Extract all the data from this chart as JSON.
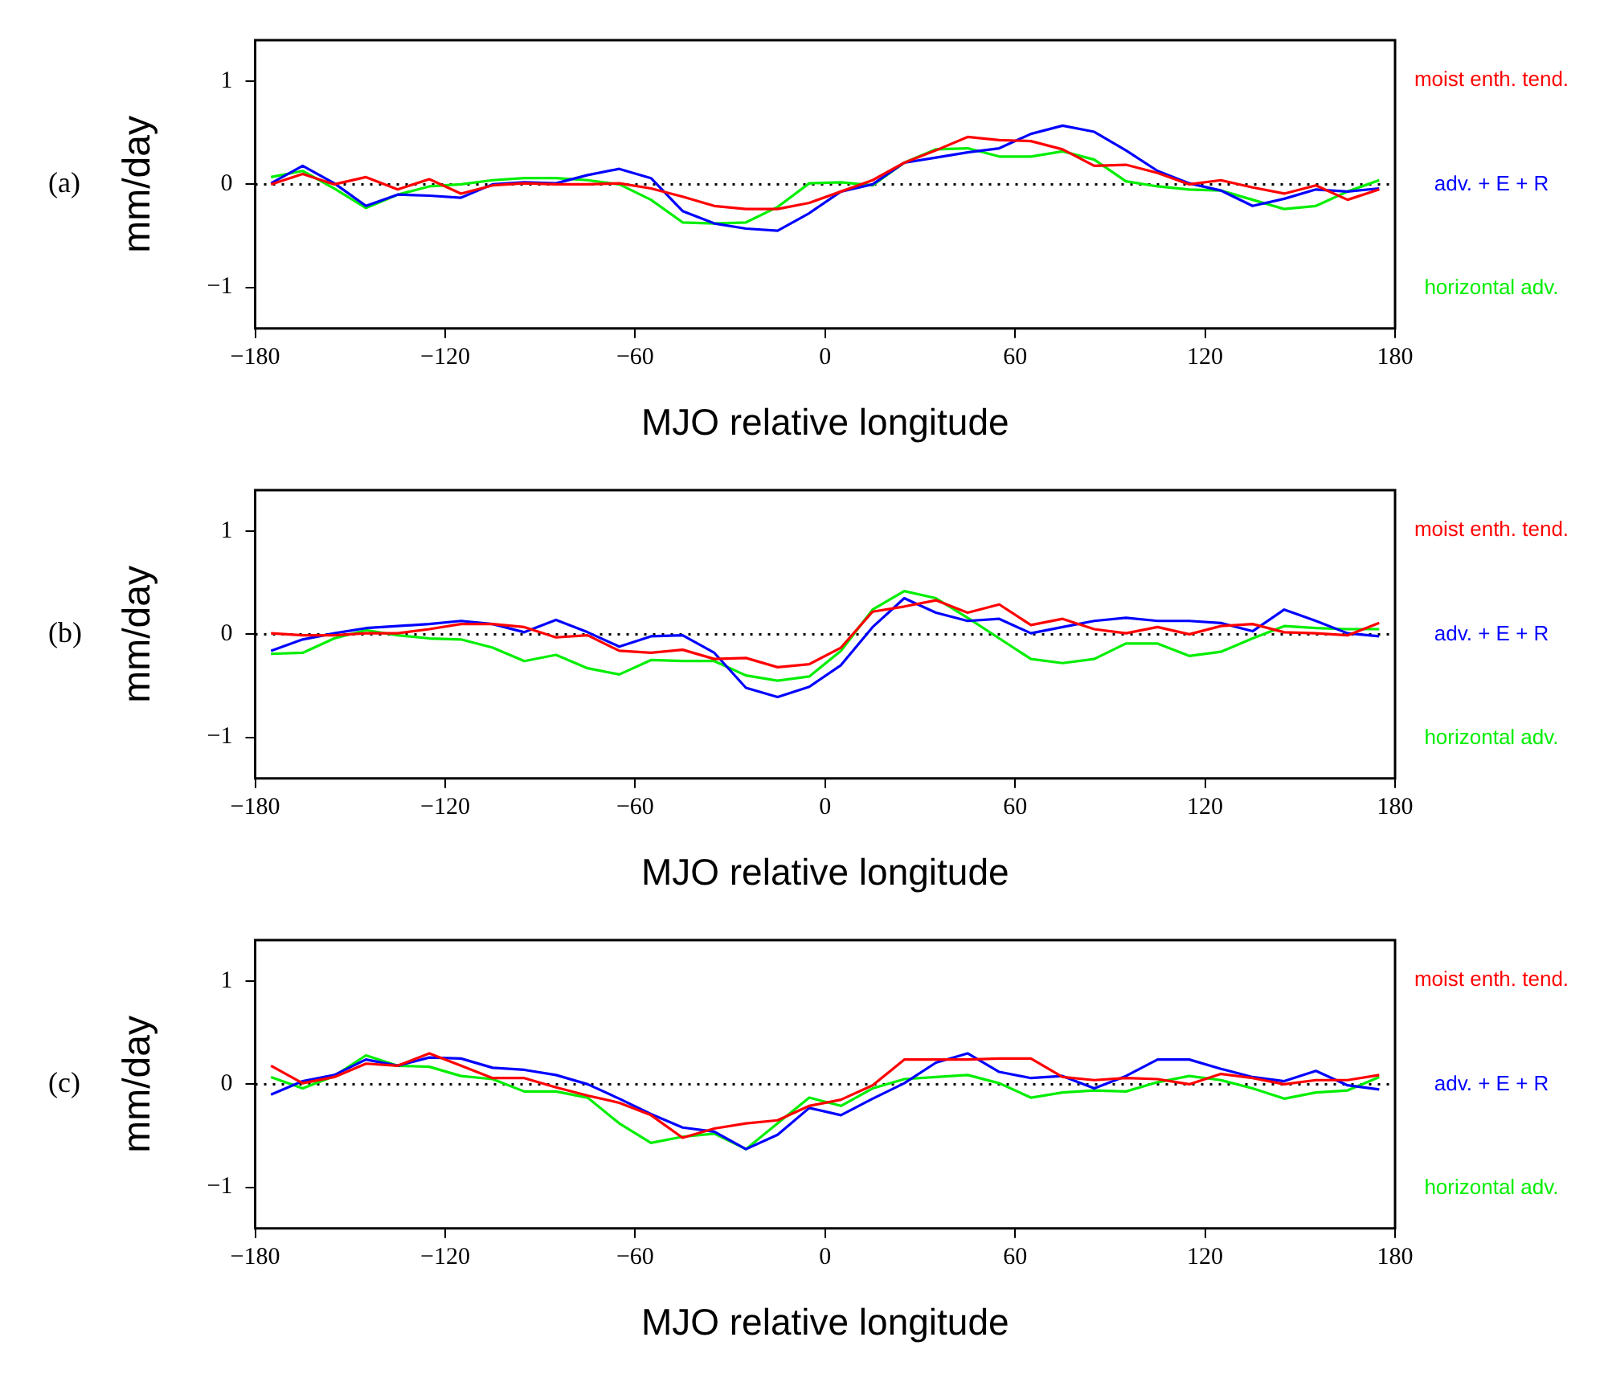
{
  "chart_data": [
    {
      "type": "line",
      "xlabel": "MJO relative longitude",
      "ylabel": "mm/day",
      "annotations": [
        "(a)"
      ],
      "x": [
        -175,
        -165,
        -155,
        -145,
        -135,
        -125,
        -115,
        -105,
        -95,
        -85,
        -75,
        -65,
        -55,
        -45,
        -35,
        -25,
        -15,
        -5,
        5,
        15,
        25,
        35,
        45,
        55,
        65,
        75,
        85,
        95,
        105,
        115,
        125,
        135,
        145,
        155,
        165,
        175
      ],
      "xlim": [
        -180,
        180
      ],
      "xticks": [
        -180,
        -120,
        -60,
        0,
        60,
        120,
        180
      ],
      "ylim": [
        -1.4,
        1.4
      ],
      "yticks": [
        -1,
        0,
        1
      ],
      "grid": false,
      "legend": "right",
      "ref_lines": [
        {
          "axis": "y",
          "value": 0,
          "line_style": "dotted",
          "color": "#000000"
        }
      ],
      "series": [
        {
          "name": "moist enth. tend.",
          "color": "#ff0000",
          "values": [
            0,
            0.1,
            0,
            0.07,
            -0.05,
            0.05,
            -0.09,
            -0.01,
            0.01,
            0,
            0,
            0.01,
            -0.04,
            -0.12,
            -0.21,
            -0.24,
            -0.24,
            -0.18,
            -0.07,
            0.04,
            0.21,
            0.33,
            0.46,
            0.43,
            0.42,
            0.34,
            0.18,
            0.19,
            0.11,
            0,
            0.04,
            -0.03,
            -0.09,
            -0.01,
            -0.15,
            -0.05
          ]
        },
        {
          "name": "adv. + E + R",
          "color": "#0000ff",
          "values": [
            0.01,
            0.18,
            0.01,
            -0.21,
            -0.1,
            -0.11,
            -0.13,
            0,
            0.02,
            0.01,
            0.09,
            0.15,
            0.06,
            -0.26,
            -0.38,
            -0.43,
            -0.45,
            -0.28,
            -0.07,
            0,
            0.21,
            0.26,
            0.31,
            0.35,
            0.49,
            0.57,
            0.51,
            0.33,
            0.13,
            0.01,
            -0.06,
            -0.21,
            -0.14,
            -0.05,
            -0.07,
            -0.04
          ]
        },
        {
          "name": "horizontal adv.",
          "color": "#00ee00",
          "values": [
            0.07,
            0.13,
            -0.04,
            -0.23,
            -0.1,
            -0.02,
            0,
            0.04,
            0.06,
            0.06,
            0.04,
            0,
            -0.15,
            -0.37,
            -0.38,
            -0.37,
            -0.22,
            0.01,
            0.02,
            -0.01,
            0.21,
            0.34,
            0.35,
            0.27,
            0.27,
            0.32,
            0.24,
            0.03,
            -0.02,
            -0.05,
            -0.06,
            -0.15,
            -0.24,
            -0.21,
            -0.07,
            0.04
          ]
        }
      ]
    },
    {
      "type": "line",
      "xlabel": "MJO relative longitude",
      "ylabel": "mm/day",
      "annotations": [
        "(b)"
      ],
      "x": [
        -175,
        -165,
        -155,
        -145,
        -135,
        -125,
        -115,
        -105,
        -95,
        -85,
        -75,
        -65,
        -55,
        -45,
        -35,
        -25,
        -15,
        -5,
        5,
        15,
        25,
        35,
        45,
        55,
        65,
        75,
        85,
        95,
        105,
        115,
        125,
        135,
        145,
        155,
        165,
        175
      ],
      "xlim": [
        -180,
        180
      ],
      "xticks": [
        -180,
        -120,
        -60,
        0,
        60,
        120,
        180
      ],
      "ylim": [
        -1.4,
        1.4
      ],
      "yticks": [
        -1,
        0,
        1
      ],
      "grid": false,
      "legend": "right",
      "ref_lines": [
        {
          "axis": "y",
          "value": 0,
          "line_style": "dotted",
          "color": "#000000"
        }
      ],
      "series": [
        {
          "name": "moist enth. tend.",
          "color": "#ff0000",
          "values": [
            0.01,
            -0.01,
            -0.01,
            0.01,
            0.01,
            0.05,
            0.1,
            0.1,
            0.07,
            -0.03,
            -0.01,
            -0.16,
            -0.18,
            -0.15,
            -0.24,
            -0.23,
            -0.32,
            -0.29,
            -0.13,
            0.22,
            0.27,
            0.33,
            0.21,
            0.29,
            0.09,
            0.15,
            0.05,
            0.01,
            0.07,
            0,
            0.08,
            0.1,
            0.02,
            0.01,
            -0.01,
            0.11
          ]
        },
        {
          "name": "adv. + E + R",
          "color": "#0000ff",
          "values": [
            -0.16,
            -0.05,
            0.01,
            0.06,
            0.08,
            0.1,
            0.13,
            0.1,
            0.02,
            0.14,
            0.02,
            -0.12,
            -0.02,
            -0.01,
            -0.18,
            -0.52,
            -0.61,
            -0.51,
            -0.3,
            0.07,
            0.35,
            0.21,
            0.13,
            0.15,
            0.01,
            0.07,
            0.13,
            0.16,
            0.13,
            0.13,
            0.11,
            0.03,
            0.24,
            0.13,
            0.01,
            -0.02
          ]
        },
        {
          "name": "horizontal adv.",
          "color": "#00ee00",
          "values": [
            -0.19,
            -0.18,
            -0.04,
            0.04,
            -0.01,
            -0.04,
            -0.05,
            -0.13,
            -0.26,
            -0.2,
            -0.33,
            -0.39,
            -0.25,
            -0.26,
            -0.26,
            -0.4,
            -0.45,
            -0.41,
            -0.16,
            0.24,
            0.42,
            0.35,
            0.16,
            -0.04,
            -0.24,
            -0.28,
            -0.24,
            -0.09,
            -0.09,
            -0.21,
            -0.17,
            -0.04,
            0.08,
            0.06,
            0.05,
            0.05
          ]
        }
      ]
    },
    {
      "type": "line",
      "xlabel": "MJO relative longitude",
      "ylabel": "mm/day",
      "annotations": [
        "(c)"
      ],
      "x": [
        -175,
        -165,
        -155,
        -145,
        -135,
        -125,
        -115,
        -105,
        -95,
        -85,
        -75,
        -65,
        -55,
        -45,
        -35,
        -25,
        -15,
        -5,
        5,
        15,
        25,
        35,
        45,
        55,
        65,
        75,
        85,
        95,
        105,
        115,
        125,
        135,
        145,
        155,
        165,
        175
      ],
      "xlim": [
        -180,
        180
      ],
      "xticks": [
        -180,
        -120,
        -60,
        0,
        60,
        120,
        180
      ],
      "ylim": [
        -1.4,
        1.4
      ],
      "yticks": [
        -1,
        0,
        1
      ],
      "grid": false,
      "legend": "right",
      "ref_lines": [
        {
          "axis": "y",
          "value": 0,
          "line_style": "dotted",
          "color": "#000000"
        }
      ],
      "series": [
        {
          "name": "moist enth. tend.",
          "color": "#ff0000",
          "values": [
            0.18,
            0.01,
            0.07,
            0.2,
            0.18,
            0.3,
            0.18,
            0.06,
            0.06,
            -0.03,
            -0.11,
            -0.18,
            -0.3,
            -0.52,
            -0.43,
            -0.38,
            -0.35,
            -0.21,
            -0.15,
            -0.01,
            0.24,
            0.24,
            0.24,
            0.25,
            0.25,
            0.07,
            0.04,
            0.06,
            0.05,
            0,
            0.1,
            0.06,
            0,
            0.04,
            0.04,
            0.09
          ]
        },
        {
          "name": "adv. + E + R",
          "color": "#0000ff",
          "values": [
            -0.1,
            0.03,
            0.09,
            0.24,
            0.18,
            0.26,
            0.25,
            0.16,
            0.14,
            0.09,
            0,
            -0.14,
            -0.29,
            -0.42,
            -0.46,
            -0.63,
            -0.49,
            -0.23,
            -0.3,
            -0.14,
            0.01,
            0.21,
            0.3,
            0.12,
            0.06,
            0.08,
            -0.04,
            0.08,
            0.24,
            0.24,
            0.15,
            0.07,
            0.03,
            0.13,
            -0.01,
            -0.05
          ]
        },
        {
          "name": "horizontal adv.",
          "color": "#00ee00",
          "values": [
            0.07,
            -0.04,
            0.08,
            0.28,
            0.18,
            0.17,
            0.08,
            0.05,
            -0.07,
            -0.07,
            -0.13,
            -0.38,
            -0.57,
            -0.51,
            -0.48,
            -0.63,
            -0.38,
            -0.13,
            -0.21,
            -0.04,
            0.05,
            0.07,
            0.09,
            0.01,
            -0.13,
            -0.08,
            -0.06,
            -0.07,
            0.02,
            0.08,
            0.04,
            -0.04,
            -0.14,
            -0.08,
            -0.06,
            0.07
          ]
        }
      ]
    }
  ]
}
